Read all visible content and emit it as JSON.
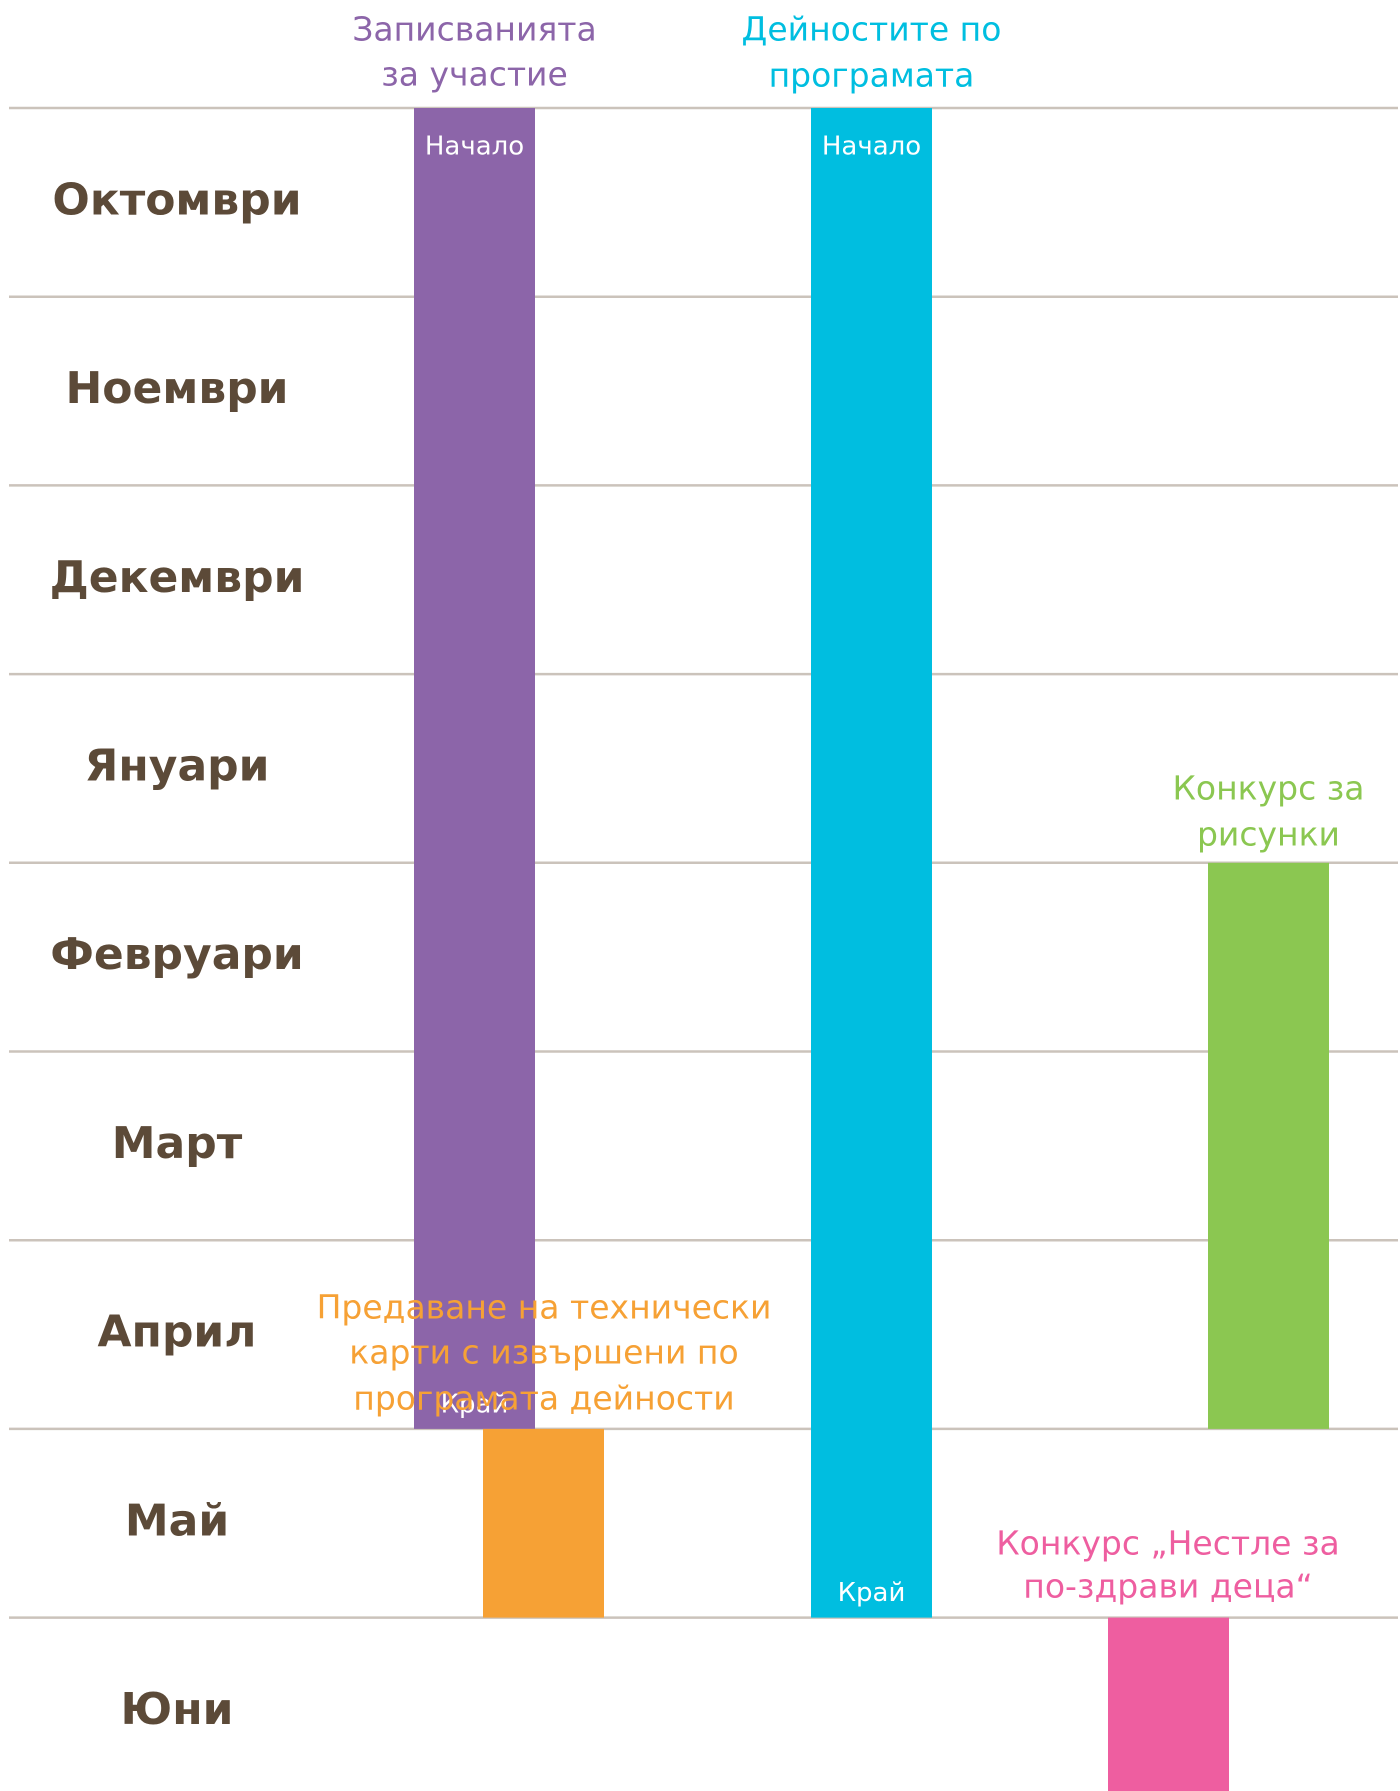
{
  "months": [
    "Октомври",
    "Ноември",
    "Декември",
    "Януари",
    "Февруари",
    "Март",
    "Април",
    "Май",
    "Юни"
  ],
  "activities": [
    {
      "title": [
        "Записванията",
        "за участие"
      ],
      "start_label": "Начало",
      "end_label": "Край",
      "color": "#8c65a9"
    },
    {
      "title": [
        "Дейностите по",
        "програмата"
      ],
      "start_label": "Начало",
      "end_label": "Край",
      "color": "#00bee0"
    },
    {
      "title": [
        "Конкурс за",
        "рисунки"
      ],
      "color": "#8bc751"
    },
    {
      "title": [
        "Предаване на технически",
        "карти с извършени по",
        "програмата дейности"
      ],
      "color": "#f6a135"
    },
    {
      "title": [
        "Конкурс „Нестле за",
        "по-здрави деца“"
      ],
      "color": "#ee5ea0"
    }
  ]
}
